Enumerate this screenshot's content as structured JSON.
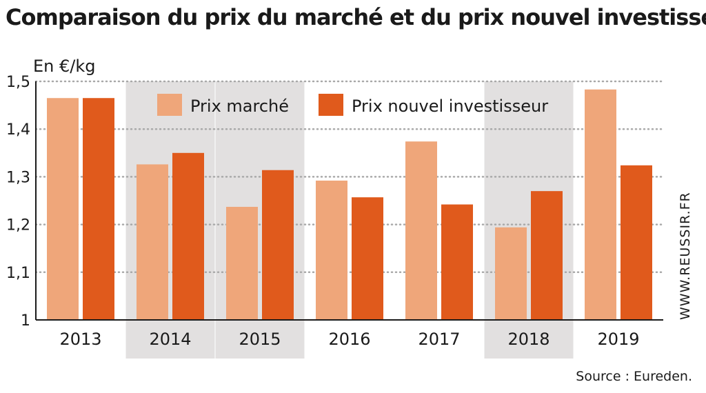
{
  "title": "Comparaison du prix du marché et du prix nouvel investisseur",
  "source": "Source : Eureden.",
  "credit": "WWW.REUSSIR.FR",
  "colors": {
    "market": "#efa67a",
    "investor": "#e05a1c",
    "shade": "#e2e0e0",
    "grid": "#a8a8a8",
    "axis": "#1a1a1a"
  },
  "chart_data": {
    "type": "bar",
    "unit_label": "En €/kg",
    "categories": [
      "2013",
      "2014",
      "2015",
      "2016",
      "2017",
      "2018",
      "2019"
    ],
    "shaded_categories": [
      "2014",
      "2015",
      "2018"
    ],
    "series": [
      {
        "name": "Prix marché",
        "values": [
          1.465,
          1.326,
          1.237,
          1.292,
          1.374,
          1.194,
          1.483
        ]
      },
      {
        "name": "Prix nouvel investisseur",
        "values": [
          1.465,
          1.35,
          1.314,
          1.257,
          1.242,
          1.27,
          1.324
        ]
      }
    ],
    "ylim": [
      1,
      1.5
    ],
    "yticks": [
      1,
      1.1,
      1.2,
      1.3,
      1.4,
      1.5
    ],
    "ytick_labels": [
      "1",
      "1,1",
      "1,2",
      "1,3",
      "1,4",
      "1,5"
    ],
    "grid": true,
    "legend_position": "top"
  }
}
